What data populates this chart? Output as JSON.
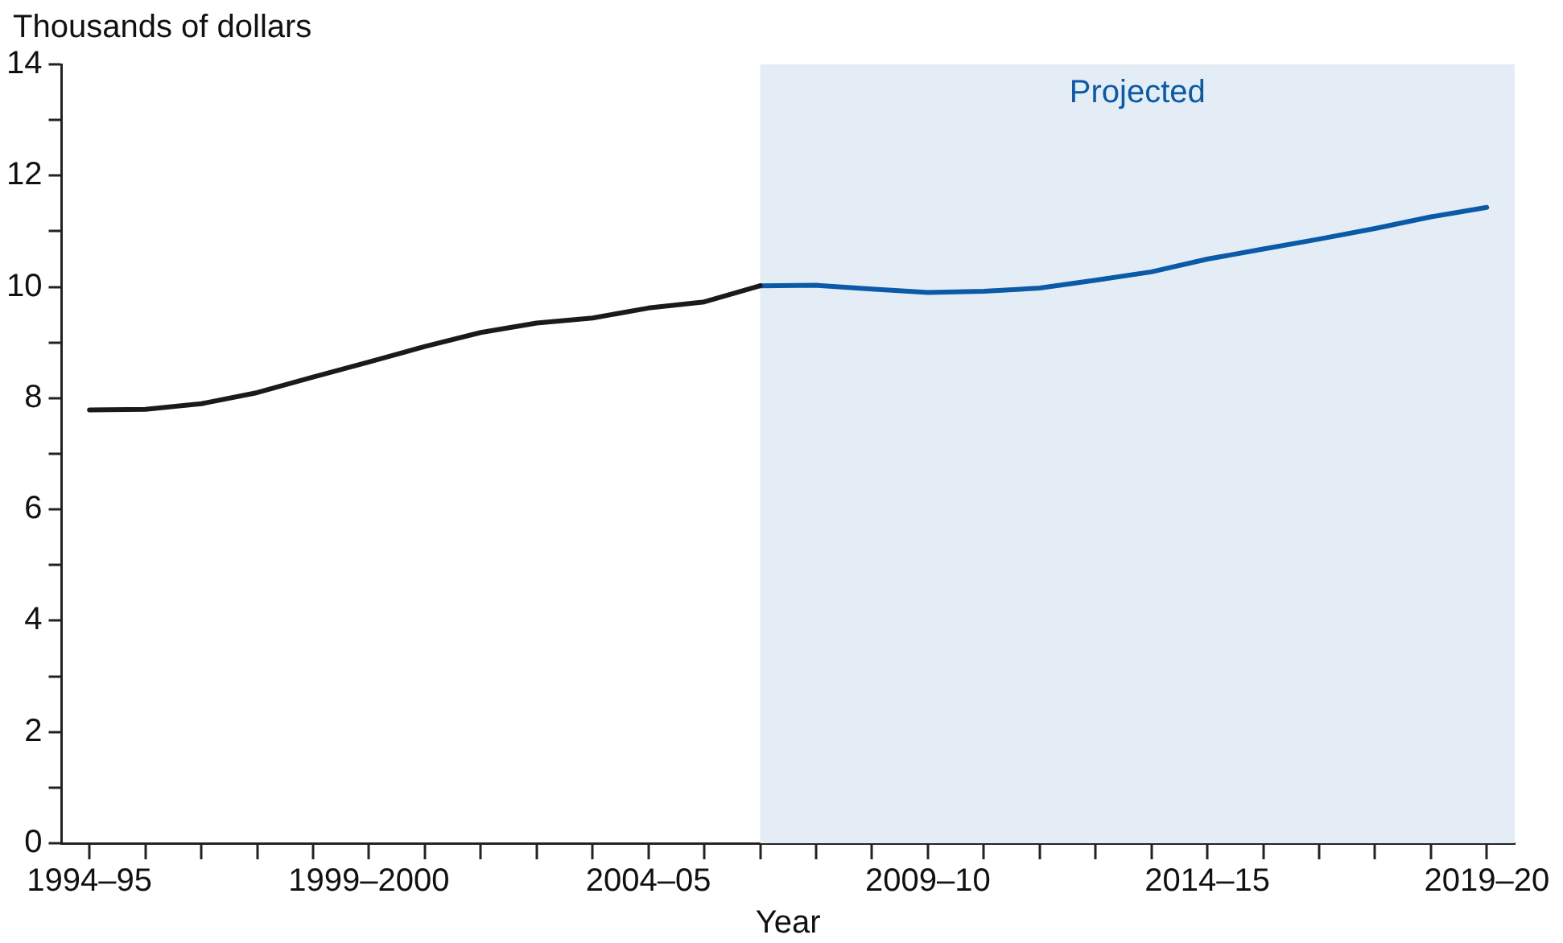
{
  "chart_data": {
    "type": "line",
    "ylabel": "Thousands of dollars",
    "xlabel": "Year",
    "categories": [
      "1994–95",
      null,
      null,
      null,
      null,
      "1999–2000",
      null,
      null,
      null,
      null,
      "2004–05",
      null,
      null,
      null,
      null,
      "2009–10",
      null,
      null,
      null,
      null,
      "2014–15",
      null,
      null,
      null,
      null,
      "2019–20"
    ],
    "series": [
      {
        "color": "#1a1a1a",
        "values": [
          7.79,
          7.8,
          7.9,
          8.1,
          8.38,
          8.65,
          8.93,
          9.18,
          9.35,
          9.44,
          9.62,
          9.73,
          10.02,
          null,
          null,
          null,
          null,
          null,
          null,
          null,
          null,
          null,
          null,
          null,
          null,
          null
        ]
      },
      {
        "color": "#0a5aa8",
        "values": [
          null,
          null,
          null,
          null,
          null,
          null,
          null,
          null,
          null,
          null,
          null,
          null,
          10.02,
          10.03,
          9.96,
          9.9,
          9.92,
          9.98,
          10.12,
          10.27,
          10.5,
          10.68,
          10.86,
          11.05,
          11.26,
          11.43
        ]
      }
    ],
    "ylim": [
      0,
      14
    ],
    "yticks": [
      0,
      {
        "value": 1,
        "label": null
      },
      2,
      {
        "value": 3,
        "label": null
      },
      4,
      {
        "value": 5,
        "label": null
      },
      6,
      {
        "value": 7,
        "label": null
      },
      8,
      {
        "value": 9,
        "label": null
      },
      10,
      {
        "value": 11,
        "label": null
      },
      12,
      {
        "value": 13,
        "label": null
      },
      14
    ],
    "annotations": [
      "Projected"
    ],
    "grid": false,
    "legend": false,
    "marker": "none",
    "line_style": "solid"
  }
}
